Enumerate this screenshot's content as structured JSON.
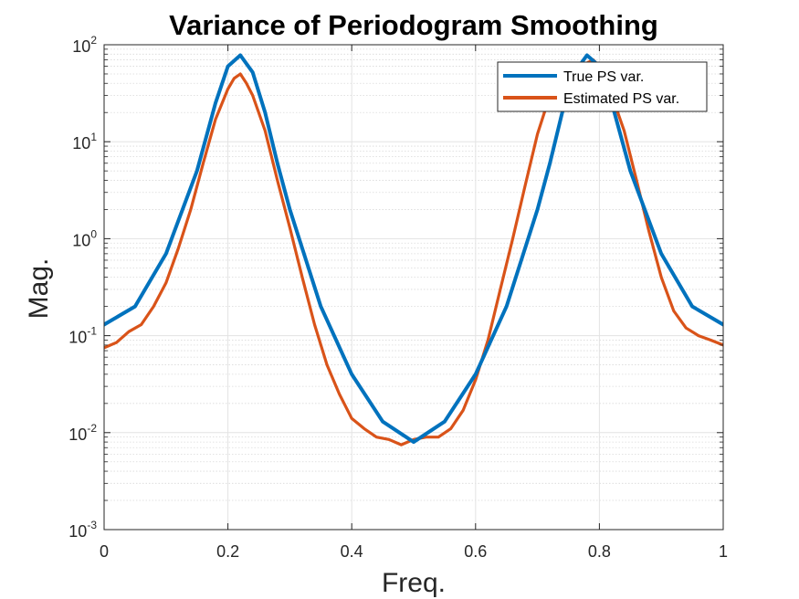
{
  "chart_data": {
    "type": "line",
    "title": "Variance of Periodogram Smoothing",
    "xlabel": "Freq.",
    "ylabel": "Mag.",
    "xlim": [
      0,
      1
    ],
    "ylim": [
      0.001,
      100
    ],
    "yscale": "log",
    "grid": true,
    "minor_grid": true,
    "legend_position": "top-right",
    "x_ticks": [
      {
        "value": 0,
        "label": "0"
      },
      {
        "value": 0.2,
        "label": "0.2"
      },
      {
        "value": 0.4,
        "label": "0.4"
      },
      {
        "value": 0.6,
        "label": "0.6"
      },
      {
        "value": 0.8,
        "label": "0.8"
      },
      {
        "value": 1,
        "label": "1"
      }
    ],
    "y_ticks": [
      {
        "value": 0.001,
        "base": "10",
        "exp": "-3"
      },
      {
        "value": 0.01,
        "base": "10",
        "exp": "-2"
      },
      {
        "value": 0.1,
        "base": "10",
        "exp": "-1"
      },
      {
        "value": 1,
        "base": "10",
        "exp": "0"
      },
      {
        "value": 10,
        "base": "10",
        "exp": "1"
      },
      {
        "value": 100,
        "base": "10",
        "exp": "2"
      }
    ],
    "series": [
      {
        "name": "True PS var.",
        "color": "#0072BD",
        "x": [
          0,
          0.05,
          0.1,
          0.15,
          0.18,
          0.2,
          0.22,
          0.24,
          0.26,
          0.28,
          0.3,
          0.35,
          0.4,
          0.45,
          0.5,
          0.55,
          0.6,
          0.65,
          0.7,
          0.72,
          0.74,
          0.76,
          0.78,
          0.8,
          0.82,
          0.85,
          0.9,
          0.95,
          1
        ],
        "y": [
          0.13,
          0.2,
          0.7,
          5,
          25,
          60,
          78,
          52,
          20,
          6,
          2,
          0.2,
          0.04,
          0.013,
          0.008,
          0.013,
          0.04,
          0.2,
          2,
          6,
          20,
          52,
          78,
          60,
          25,
          5,
          0.7,
          0.2,
          0.13
        ]
      },
      {
        "name": "Estimated PS var.",
        "color": "#D95319",
        "x": [
          0,
          0.02,
          0.04,
          0.06,
          0.08,
          0.1,
          0.12,
          0.14,
          0.16,
          0.18,
          0.2,
          0.21,
          0.22,
          0.23,
          0.24,
          0.26,
          0.28,
          0.3,
          0.32,
          0.34,
          0.36,
          0.38,
          0.4,
          0.42,
          0.44,
          0.46,
          0.48,
          0.5,
          0.52,
          0.54,
          0.56,
          0.58,
          0.6,
          0.62,
          0.64,
          0.66,
          0.68,
          0.7,
          0.72,
          0.74,
          0.76,
          0.78,
          0.79,
          0.8,
          0.81,
          0.82,
          0.84,
          0.86,
          0.88,
          0.9,
          0.92,
          0.94,
          0.96,
          0.98,
          1
        ],
        "y": [
          0.075,
          0.085,
          0.11,
          0.13,
          0.2,
          0.35,
          0.8,
          2,
          6,
          17,
          35,
          45,
          50,
          40,
          30,
          13,
          4,
          1.3,
          0.4,
          0.13,
          0.05,
          0.025,
          0.014,
          0.011,
          0.009,
          0.0085,
          0.0075,
          0.0085,
          0.009,
          0.009,
          0.011,
          0.017,
          0.035,
          0.09,
          0.3,
          1,
          3.5,
          12,
          30,
          50,
          60,
          65,
          70,
          60,
          45,
          30,
          13,
          4,
          1.2,
          0.4,
          0.18,
          0.12,
          0.1,
          0.09,
          0.08
        ]
      }
    ]
  }
}
